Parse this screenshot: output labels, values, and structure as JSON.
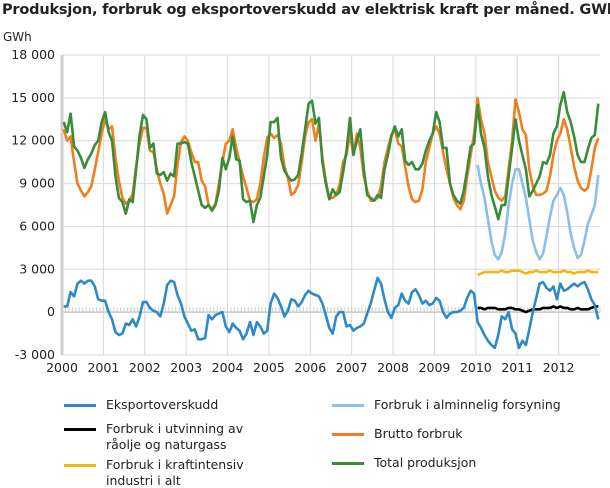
{
  "title": "Produksjon, forbruk og eksportoverskudd av elektrisk kraft per måned. GWh",
  "chart_data": {
    "type": "line",
    "title": "Produksjon, forbruk og eksportoverskudd av elektrisk kraft per måned. GWh",
    "ylabel": "GWh",
    "xlabel": "",
    "ylim": [
      -3000,
      18000
    ],
    "yticks": [
      -3000,
      0,
      3000,
      6000,
      9000,
      12000,
      15000,
      18000
    ],
    "ytick_labels": [
      "-3 000",
      "0",
      "3 000",
      "6 000",
      "9 000",
      "12 000",
      "15 000",
      "18 000"
    ],
    "xticks": [
      "2000",
      "2001",
      "2002",
      "2003",
      "2004",
      "2005",
      "2006",
      "2007",
      "2008",
      "2009",
      "2010",
      "2011",
      "2012"
    ],
    "x_frequency": "monthly, Jan 2000 – Dec 2012",
    "grid": true,
    "legend_position": "bottom",
    "series": [
      {
        "name": "Eksportoverskudd",
        "color": "#2e8ac6",
        "start": "2000-01",
        "values": [
          400,
          400,
          1400,
          1100,
          2000,
          2200,
          2000,
          2200,
          2200,
          1800,
          900,
          800,
          800,
          0,
          -500,
          -1400,
          -1600,
          -1500,
          -800,
          -900,
          -500,
          -1000,
          -300,
          700,
          700,
          300,
          100,
          0,
          -300,
          600,
          1900,
          2200,
          2100,
          1200,
          600,
          -300,
          -800,
          -1300,
          -1200,
          -1900,
          -1900,
          -1800,
          -200,
          -500,
          -200,
          -100,
          0,
          -1000,
          -1400,
          -800,
          -1100,
          -1300,
          -1900,
          -1500,
          -700,
          -1600,
          -700,
          -1000,
          -1500,
          -1300,
          600,
          1300,
          1000,
          400,
          -300,
          100,
          900,
          800,
          400,
          700,
          1200,
          1500,
          1300,
          1200,
          1100,
          600,
          -200,
          -1100,
          -1500,
          -300,
          0,
          0,
          -1000,
          -900,
          -1300,
          -1100,
          -1000,
          -800,
          -100,
          600,
          1500,
          2400,
          2000,
          900,
          0,
          -400,
          300,
          500,
          1300,
          800,
          600,
          1400,
          1600,
          1200,
          600,
          800,
          500,
          600,
          1000,
          800,
          0,
          -400,
          -100,
          0,
          0,
          100,
          300,
          1000,
          1500,
          1300,
          -700,
          -1100,
          -1600,
          -2000,
          -2300,
          -2500,
          -1600,
          -300,
          -500,
          0,
          -1200,
          -1500,
          -2500,
          -2000,
          -2300,
          -1200,
          0,
          1000,
          2000,
          2100,
          1700,
          1500,
          1800,
          900,
          2000,
          1500,
          1600,
          1800,
          2000,
          1800,
          2000,
          2100,
          1600,
          900,
          500,
          -500
        ]
      },
      {
        "name": "Forbruk i utvinning av råolje og naturgass",
        "color": "#000000",
        "start": "2010-01",
        "values": [
          300,
          300,
          200,
          300,
          300,
          300,
          200,
          200,
          200,
          300,
          300,
          200,
          200,
          100,
          0,
          100,
          200,
          200,
          200,
          300,
          300,
          300,
          400,
          300,
          400,
          300,
          300,
          200,
          200,
          300,
          200,
          200,
          200,
          300,
          400,
          400
        ]
      },
      {
        "name": "Forbruk i kraftintensiv industri i alt",
        "color": "#efb815",
        "start": "2010-01",
        "values": [
          2600,
          2700,
          2800,
          2800,
          2800,
          2800,
          2800,
          2900,
          2800,
          2800,
          2900,
          2900,
          2900,
          2800,
          2700,
          2800,
          2800,
          2900,
          2800,
          2800,
          2800,
          2900,
          2800,
          2800,
          2800,
          2900,
          2800,
          2800,
          2700,
          2800,
          2800,
          2800,
          2900,
          2800,
          2800,
          2800
        ]
      },
      {
        "name": "Forbruk i alminnelig forsyning",
        "color": "#8cbee8",
        "start": "2010-01",
        "values": [
          10300,
          9000,
          8000,
          6500,
          5000,
          4000,
          3700,
          4200,
          5500,
          7500,
          9000,
          10000,
          10000,
          9000,
          8000,
          6500,
          5000,
          4200,
          3700,
          4100,
          5300,
          6700,
          7800,
          8200,
          8700,
          8200,
          7000,
          5500,
          4500,
          3800,
          4000,
          5000,
          6200,
          6800,
          7500,
          9600
        ]
      },
      {
        "name": "Brutto forbruk",
        "color": "#f07f1e",
        "start": "2000-01",
        "values": [
          12800,
          12000,
          12300,
          10500,
          9000,
          8500,
          8100,
          8400,
          8800,
          10000,
          11200,
          12500,
          13500,
          12800,
          13000,
          10800,
          9200,
          8000,
          7600,
          7800,
          8300,
          10200,
          11800,
          12900,
          12900,
          11300,
          11200,
          10000,
          9000,
          8300,
          6900,
          7500,
          8100,
          10300,
          11900,
          12300,
          12000,
          11200,
          10500,
          10500,
          9200,
          8800,
          7500,
          7200,
          7600,
          9000,
          10500,
          11800,
          12000,
          12800,
          11500,
          10500,
          9500,
          8700,
          7800,
          7700,
          7900,
          9000,
          10800,
          12200,
          12500,
          12200,
          12400,
          11800,
          10200,
          9400,
          8200,
          8400,
          8900,
          10500,
          12300,
          13300,
          13500,
          12000,
          13200,
          10800,
          9200,
          8000,
          8000,
          8200,
          8900,
          10500,
          11000,
          12500,
          11000,
          12500,
          11500,
          9500,
          8500,
          7800,
          7800,
          8000,
          8800,
          10500,
          11500,
          12400,
          12800,
          11800,
          11600,
          10200,
          8800,
          7900,
          7700,
          7800,
          8600,
          10500,
          11500,
          12500,
          13000,
          12500,
          11200,
          10000,
          9000,
          8000,
          7500,
          7200,
          7800,
          9500,
          11000,
          12500,
          15000,
          13500,
          12500,
          10500,
          9500,
          8500,
          8000,
          7800,
          8100,
          10000,
          12000,
          14900,
          14000,
          12800,
          12400,
          10000,
          8800,
          8200,
          8200,
          8300,
          8500,
          9500,
          11000,
          12000,
          12500,
          13500,
          12800,
          11500,
          10200,
          9200,
          8700,
          8500,
          8700,
          10000,
          11500,
          12200
        ]
      },
      {
        "name": "Total produksjon",
        "color": "#3a8b3a",
        "start": "2000-01",
        "values": [
          13300,
          12600,
          13900,
          11600,
          11300,
          10800,
          10100,
          10700,
          11100,
          11700,
          12000,
          13300,
          14000,
          12600,
          12000,
          9500,
          8000,
          7700,
          6900,
          7900,
          7700,
          10000,
          12400,
          13800,
          13500,
          11500,
          11800,
          9700,
          9600,
          9800,
          9200,
          9700,
          9500,
          11800,
          11800,
          11900,
          11800,
          10500,
          9500,
          8500,
          7500,
          7300,
          7500,
          7100,
          7500,
          8500,
          10800,
          10000,
          10800,
          12300,
          10700,
          10600,
          7900,
          7700,
          7800,
          6300,
          7500,
          8000,
          9500,
          11000,
          13300,
          13300,
          13600,
          10800,
          9900,
          9500,
          9200,
          9300,
          9600,
          11100,
          12800,
          14600,
          14800,
          13200,
          13600,
          10500,
          9000,
          7900,
          8600,
          8200,
          8400,
          9800,
          11300,
          13600,
          11000,
          12000,
          12800,
          10000,
          8200,
          8000,
          7800,
          8200,
          8000,
          10000,
          11000,
          12300,
          13000,
          12300,
          12800,
          10600,
          10300,
          10500,
          10000,
          10000,
          10400,
          11300,
          12000,
          12500,
          14000,
          13300,
          11500,
          11500,
          9000,
          8200,
          7800,
          7600,
          8500,
          10000,
          11600,
          11800,
          14500,
          12500,
          11500,
          9500,
          8200,
          7400,
          6500,
          7500,
          7500,
          9500,
          11500,
          13500,
          12000,
          11000,
          10000,
          8100,
          8500,
          9000,
          9500,
          10500,
          10400,
          11000,
          12500,
          13000,
          14500,
          15400,
          14000,
          13300,
          12300,
          11000,
          10500,
          10500,
          11400,
          12200,
          12400,
          14600
        ]
      }
    ]
  },
  "legend": [
    {
      "label": "Eksportoverskudd",
      "color": "#2e8ac6"
    },
    {
      "label": "Forbruk i utvinning av råolje og naturgass",
      "color": "#000000"
    },
    {
      "label": "Forbruk i kraftintensiv industri i alt",
      "color": "#efb815"
    },
    {
      "label": "Forbruk i alminnelig forsyning",
      "color": "#8cbee8"
    },
    {
      "label": "Brutto forbruk",
      "color": "#f07f1e"
    },
    {
      "label": "Total produksjon",
      "color": "#3a8b3a"
    }
  ]
}
